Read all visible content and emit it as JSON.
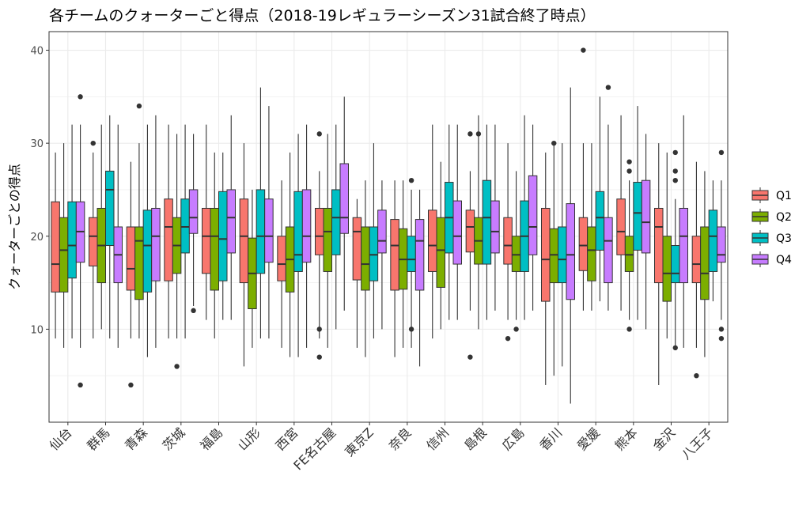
{
  "chart_data": {
    "type": "boxplot",
    "title": "各チームのクォーターごと得点（2018-19レギュラーシーズン31試合終了時点）",
    "xlabel": "",
    "ylabel": "クォーターごとの得点",
    "ylim": [
      0,
      42
    ],
    "yticks": [
      10,
      20,
      30,
      40
    ],
    "grid": true,
    "legend_position": "right",
    "series_names": [
      "Q1",
      "Q2",
      "Q3",
      "Q4"
    ],
    "colors": [
      "#F8766D",
      "#7CAE00",
      "#00BFC4",
      "#C77CFF"
    ],
    "categories": [
      "仙台",
      "群馬",
      "青森",
      "茨城",
      "福島",
      "山形",
      "西宮",
      "FE名古屋",
      "東京Z",
      "奈良",
      "信州",
      "島根",
      "広島",
      "香川",
      "愛媛",
      "熊本",
      "金沢",
      "八王子"
    ],
    "boxes": [
      [
        [
          9,
          14,
          17,
          23.7,
          29,
          []
        ],
        [
          8,
          14,
          18.5,
          22,
          30,
          []
        ],
        [
          9,
          15.5,
          19,
          23.7,
          32,
          []
        ],
        [
          8,
          17.2,
          20.5,
          23.7,
          32,
          [
            35,
            4
          ]
        ]
      ],
      [
        [
          9,
          16.8,
          20,
          22,
          29,
          [
            30
          ]
        ],
        [
          10,
          15,
          19,
          23,
          32,
          []
        ],
        [
          9,
          19,
          25,
          27,
          33,
          []
        ],
        [
          8,
          15,
          18,
          21,
          32,
          []
        ]
      ],
      [
        [
          9,
          14.2,
          16.5,
          21,
          28,
          [
            4
          ]
        ],
        [
          9,
          13.2,
          19.5,
          21,
          30,
          [
            34
          ]
        ],
        [
          7,
          14,
          19,
          22.8,
          32,
          []
        ],
        [
          8,
          15.2,
          20,
          23,
          33,
          []
        ]
      ],
      [
        [
          9,
          15.2,
          21,
          24,
          32,
          []
        ],
        [
          9,
          16,
          19,
          22,
          31,
          [
            6
          ]
        ],
        [
          9,
          18.2,
          21,
          24,
          32,
          []
        ],
        [
          12.5,
          20.3,
          22,
          25,
          31,
          [
            12
          ]
        ]
      ],
      [
        [
          11,
          16,
          20,
          23,
          32,
          []
        ],
        [
          9,
          14.2,
          20,
          23,
          29,
          []
        ],
        [
          11,
          15.2,
          19.7,
          24.8,
          29,
          []
        ],
        [
          11,
          18.2,
          22,
          25,
          33,
          []
        ]
      ],
      [
        [
          6,
          15,
          20,
          24,
          30,
          []
        ],
        [
          8,
          12.2,
          16,
          19.8,
          25,
          []
        ],
        [
          9,
          16,
          20,
          25,
          36,
          []
        ],
        [
          9,
          17.2,
          20,
          24,
          34,
          []
        ]
      ],
      [
        [
          8,
          15.2,
          17,
          20,
          26,
          []
        ],
        [
          7,
          14,
          17.5,
          21,
          29,
          []
        ],
        [
          7,
          16.2,
          18,
          24.8,
          31,
          []
        ],
        [
          8,
          17.2,
          20,
          25,
          32,
          []
        ]
      ],
      [
        [
          9,
          18,
          20,
          23,
          27,
          [
            31,
            10,
            7
          ]
        ],
        [
          8,
          16.2,
          20.5,
          23,
          31,
          []
        ],
        [
          10,
          18,
          22,
          25,
          32,
          []
        ],
        [
          12,
          20.3,
          22,
          27.8,
          35,
          []
        ]
      ],
      [
        [
          8,
          15.3,
          20.5,
          22,
          24,
          []
        ],
        [
          7,
          14.2,
          17,
          21,
          26,
          []
        ],
        [
          9,
          15.2,
          18,
          21,
          30,
          []
        ],
        [
          10,
          18.2,
          19.5,
          22.8,
          26,
          []
        ]
      ],
      [
        [
          7,
          14.2,
          19,
          21.8,
          26,
          []
        ],
        [
          8,
          14.3,
          17.5,
          20.8,
          26,
          []
        ],
        [
          8,
          16.2,
          17.5,
          20,
          25,
          [
            26,
            10
          ]
        ],
        [
          6,
          14.2,
          19.5,
          21.8,
          25,
          []
        ]
      ],
      [
        [
          9,
          16.2,
          19,
          22.8,
          32,
          []
        ],
        [
          10,
          14.5,
          18.5,
          22,
          28,
          []
        ],
        [
          11,
          18.2,
          22,
          25.8,
          32,
          []
        ],
        [
          11,
          17,
          20,
          23.8,
          32,
          []
        ]
      ],
      [
        [
          12,
          18.3,
          21,
          22.8,
          27,
          [
            31,
            7
          ]
        ],
        [
          10,
          17,
          19.5,
          22,
          33,
          [
            31
          ]
        ],
        [
          11,
          17,
          22,
          26,
          32,
          []
        ],
        [
          12,
          18.2,
          20.5,
          23.8,
          32,
          []
        ]
      ],
      [
        [
          11,
          17,
          19,
          22,
          30,
          [
            9
          ]
        ],
        [
          11,
          16.2,
          18,
          20,
          27,
          [
            10
          ]
        ],
        [
          11,
          16.2,
          20,
          23.8,
          33,
          []
        ],
        [
          12,
          18,
          21,
          26.5,
          32,
          []
        ]
      ],
      [
        [
          4,
          13,
          17.5,
          23,
          29,
          []
        ],
        [
          5,
          15,
          18,
          20.8,
          30,
          [
            30
          ]
        ],
        [
          6,
          15,
          17.5,
          21,
          30,
          []
        ],
        [
          2,
          13.2,
          18,
          23.5,
          36,
          []
        ]
      ],
      [
        [
          12,
          16.3,
          19,
          22,
          30,
          [
            40
          ]
        ],
        [
          12,
          15.2,
          18.5,
          21,
          30,
          []
        ],
        [
          13,
          18.5,
          22,
          24.8,
          35,
          []
        ],
        [
          12,
          15,
          19.5,
          22,
          32,
          [
            36
          ]
        ]
      ],
      [
        [
          12,
          18,
          20.5,
          24,
          33,
          []
        ],
        [
          11,
          16.2,
          18,
          20,
          26,
          [
            28,
            27,
            10
          ]
        ],
        [
          11,
          18.5,
          22.5,
          25.8,
          34,
          []
        ],
        [
          10,
          18.2,
          21.5,
          26,
          31,
          []
        ]
      ],
      [
        [
          4,
          15,
          21,
          23,
          30,
          []
        ],
        [
          9,
          13,
          16,
          20,
          29,
          []
        ],
        [
          8,
          15,
          16,
          19,
          24,
          [
            29,
            27,
            26,
            8
          ]
        ],
        [
          8,
          15,
          20,
          23,
          33,
          []
        ]
      ],
      [
        [
          8,
          15,
          17,
          20,
          28,
          [
            5
          ]
        ],
        [
          7,
          13.2,
          16,
          21,
          27,
          []
        ],
        [
          13,
          16.2,
          20,
          22.8,
          26,
          []
        ],
        [
          11,
          17.2,
          18,
          21,
          26,
          [
            29,
            10,
            9
          ]
        ]
      ]
    ]
  }
}
